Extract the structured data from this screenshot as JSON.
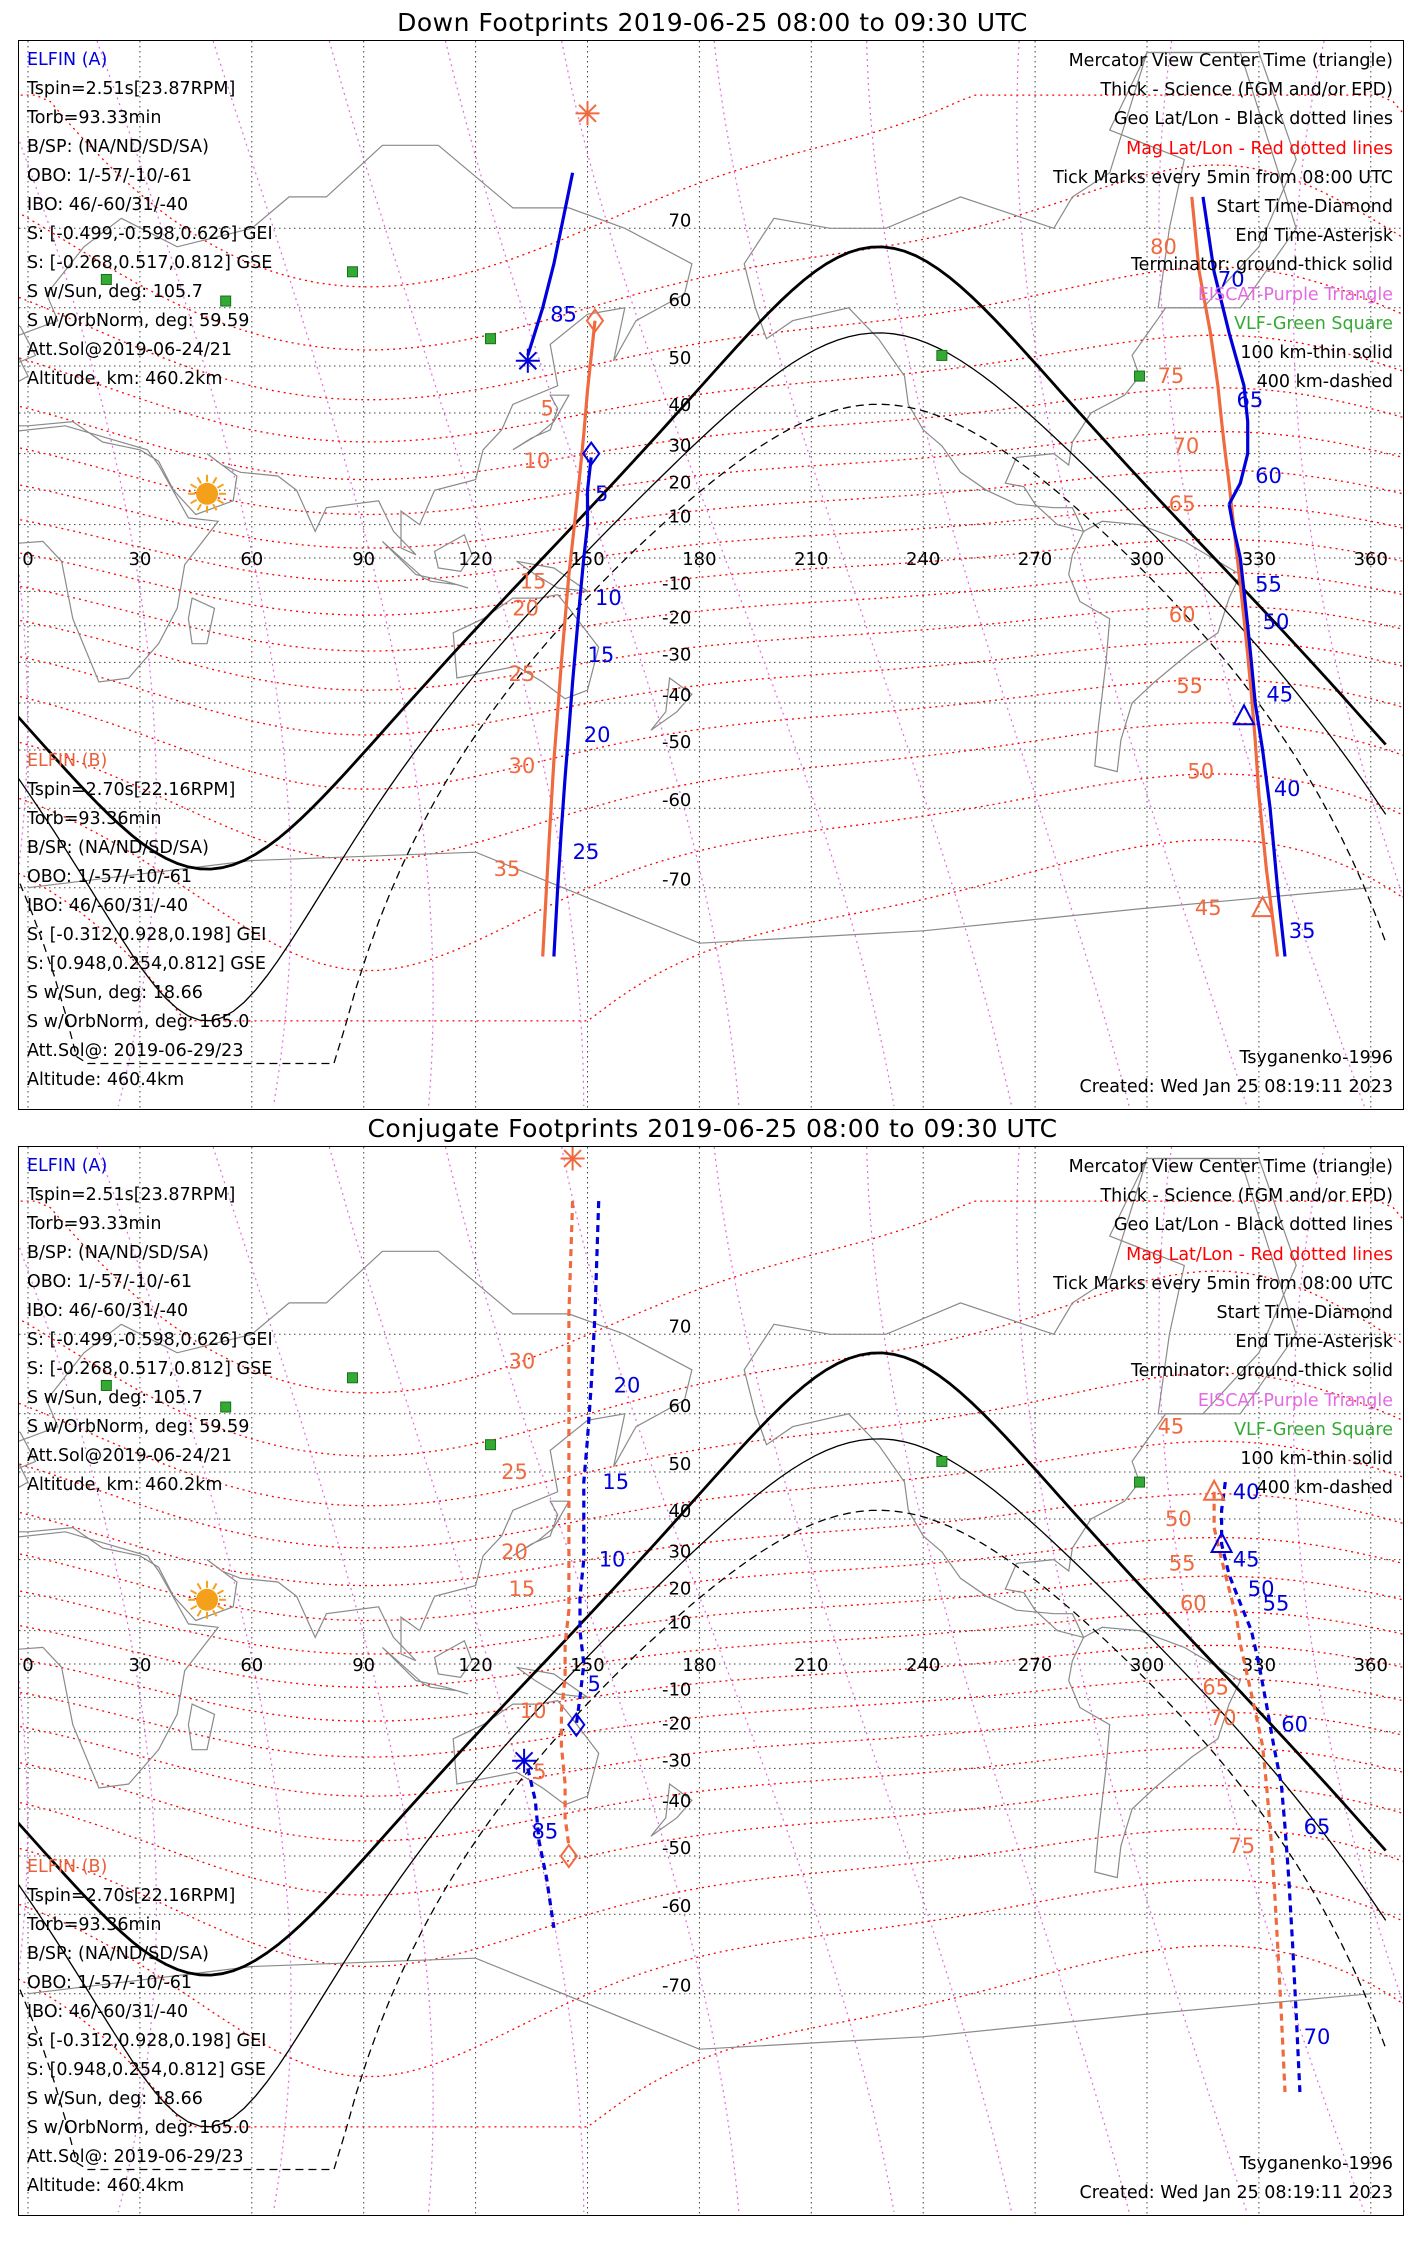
{
  "panels": [
    {
      "title": "Down Footprints 2019-06-25 08:00 to 09:30 UTC",
      "elfin_a": {
        "header": "ELFIN (A)",
        "lines": [
          "Tspin=2.51s[23.87RPM]",
          "Torb=93.33min",
          "B/SP: (NA/ND/SD/SA)",
          "OBO: 1/-57/-10/-61",
          "IBO: 46/-60/31/-40",
          "S: [-0.499,-0.598,0.626] GEI",
          "S: [-0.268,0.517,0.812] GSE",
          "S w/Sun, deg: 105.7",
          "S w/OrbNorm, deg: 59.59",
          "Att.Sol@2019-06-24/21",
          "Altitude, km: 460.2km"
        ]
      },
      "elfin_b": {
        "header": "ELFIN (B)",
        "lines": [
          "Tspin=2.70s[22.16RPM]",
          "Torb=93.36min",
          "B/SP: (NA/ND/SD/SA)",
          "OBO: 1/-57/-10/-61",
          "IBO: 46/-60/31/-40",
          "S: [-0.312,0.928,0.198] GEI",
          "S: [0.948,0.254,0.812] GSE",
          "S w/Sun, deg: 18.66",
          "S w/OrbNorm, deg: 165.0",
          "Att.Sol@: 2019-06-29/23",
          "Altitude: 460.4km"
        ]
      },
      "model": "Tsyganenko-1996",
      "created": "Created: Wed Jan 25 08:19:11 2023"
    },
    {
      "title": "Conjugate Footprints 2019-06-25 08:00 to 09:30 UTC",
      "elfin_a": {
        "header": "ELFIN (A)",
        "lines": [
          "Tspin=2.51s[23.87RPM]",
          "Torb=93.33min",
          "B/SP: (NA/ND/SD/SA)",
          "OBO: 1/-57/-10/-61",
          "IBO: 46/-60/31/-40",
          "S: [-0.499,-0.598,0.626] GEI",
          "S: [-0.268,0.517,0.812] GSE",
          "S w/Sun, deg: 105.7",
          "S w/OrbNorm, deg: 59.59",
          "Att.Sol@2019-06-24/21",
          "Altitude, km: 460.2km"
        ]
      },
      "elfin_b": {
        "header": "ELFIN (B)",
        "lines": [
          "Tspin=2.70s[22.16RPM]",
          "Torb=93.36min",
          "B/SP: (NA/ND/SD/SA)",
          "OBO: 1/-57/-10/-61",
          "IBO: 46/-60/31/-40",
          "S: [-0.312,0.928,0.198] GEI",
          "S: [0.948,0.254,0.812] GSE",
          "S w/Sun, deg: 18.66",
          "S w/OrbNorm, deg: 165.0",
          "Att.Sol@: 2019-06-29/23",
          "Altitude: 460.4km"
        ]
      },
      "model": "Tsyganenko-1996",
      "created": "Created: Wed Jan 25 08:19:11 2023"
    }
  ],
  "legend": {
    "l1": "Mercator View Center Time (triangle)",
    "l2": "Thick - Science (FGM and/or EPD)",
    "l3": "Geo Lat/Lon - Black dotted lines",
    "l4": "Mag Lat/Lon - Red dotted lines",
    "l5": "Tick Marks every 5min from 08:00 UTC",
    "l6": "Start Time-Diamond",
    "l7": "End Time-Asterisk",
    "l8": "Terminator: ground-thick solid",
    "l9": "EISCAT-Purple Triangle",
    "l10": "VLF-Green Square",
    "l11": "100 km-thin solid",
    "l12": "400 km-dashed"
  },
  "axes": {
    "lon_ticks": [
      0,
      30,
      60,
      90,
      120,
      150,
      180,
      210,
      240,
      270,
      300,
      330,
      360
    ],
    "lat_ticks": [
      70,
      60,
      50,
      40,
      30,
      20,
      10,
      -10,
      -20,
      -30,
      -40,
      -50,
      -60,
      -70
    ]
  },
  "colors": {
    "elfin_a": "#0000dd",
    "elfin_b": "#f06a40",
    "mag_grid": "#ff0000",
    "eiscat": "#e26be2",
    "vlf": "#33aa33",
    "sun": "#f5a01a"
  },
  "tracks": {
    "down": {
      "a_segments": [
        {
          "pts": [
            [
              146,
              75
            ],
            [
              141,
              66
            ],
            [
              138,
              60
            ],
            [
              134,
              52
            ]
          ],
          "dash": false
        },
        {
          "pts": [
            [
              151,
              29
            ],
            [
              150,
              20
            ],
            [
              150,
              10
            ],
            [
              149,
              0
            ],
            [
              148,
              -12
            ],
            [
              147,
              -24
            ],
            [
              146,
              -35
            ],
            [
              145,
              -46
            ],
            [
              144,
              -55
            ],
            [
              143,
              -63
            ],
            [
              142,
              -70
            ],
            [
              141,
              -76
            ]
          ],
          "dash": false
        },
        {
          "pts": [
            [
              315,
              73
            ],
            [
              318,
              65
            ],
            [
              322,
              56
            ],
            [
              326,
              46
            ],
            [
              327,
              38
            ],
            [
              327,
              30
            ],
            [
              325,
              22
            ],
            [
              322,
              16
            ]
          ],
          "dash": false
        },
        {
          "pts": [
            [
              322,
              16
            ],
            [
              323,
              10
            ],
            [
              325,
              0
            ],
            [
              326,
              -10
            ],
            [
              327,
              -20
            ],
            [
              328,
              -30
            ],
            [
              329,
              -40
            ],
            [
              331,
              -50
            ],
            [
              333,
              -60
            ],
            [
              335,
              -70
            ],
            [
              337,
              -76
            ]
          ],
          "dash": false
        }
      ],
      "b_segments": [
        {
          "pts": [
            [
              152,
              58
            ],
            [
              150,
              45
            ],
            [
              149,
              35
            ],
            [
              148,
              25
            ],
            [
              147,
              15
            ],
            [
              146,
              5
            ],
            [
              145,
              -5
            ],
            [
              144,
              -18
            ],
            [
              143,
              -30
            ],
            [
              142,
              -42
            ],
            [
              141,
              -52
            ],
            [
              140,
              -62
            ],
            [
              139,
              -70
            ],
            [
              138,
              -76
            ]
          ],
          "dash": false
        },
        {
          "pts": [
            [
              312,
              73
            ],
            [
              314,
              65
            ],
            [
              317,
              56
            ],
            [
              319,
              46
            ],
            [
              320,
              38
            ],
            [
              321,
              30
            ],
            [
              322,
              22
            ],
            [
              323,
              12
            ],
            [
              324,
              2
            ],
            [
              325,
              -8
            ],
            [
              326,
              -18
            ],
            [
              327,
              -28
            ],
            [
              328,
              -38
            ],
            [
              329,
              -48
            ],
            [
              330,
              -58
            ],
            [
              332,
              -68
            ],
            [
              335,
              -76
            ]
          ],
          "dash": false
        }
      ],
      "a_ticks": [
        {
          "t": "85",
          "lon": 140,
          "lat": 59
        },
        {
          "t": "5",
          "lon": 152,
          "lat": 19
        },
        {
          "t": "10",
          "lon": 152,
          "lat": -12
        },
        {
          "t": "15",
          "lon": 150,
          "lat": -28
        },
        {
          "t": "20",
          "lon": 149,
          "lat": -47
        },
        {
          "t": "25",
          "lon": 146,
          "lat": -66
        },
        {
          "t": "70",
          "lon": 319,
          "lat": 64
        },
        {
          "t": "65",
          "lon": 324,
          "lat": 43
        },
        {
          "t": "60",
          "lon": 329,
          "lat": 24
        },
        {
          "t": "55",
          "lon": 329,
          "lat": -8
        },
        {
          "t": "50",
          "lon": 331,
          "lat": -19
        },
        {
          "t": "45",
          "lon": 332,
          "lat": -38
        },
        {
          "t": "40",
          "lon": 334,
          "lat": -57
        },
        {
          "t": "35",
          "lon": 338,
          "lat": -74
        }
      ],
      "b_ticks": [
        {
          "t": "5",
          "lon": 141,
          "lat": 41
        },
        {
          "t": "10",
          "lon": 140,
          "lat": 28
        },
        {
          "t": "15",
          "lon": 139,
          "lat": -7
        },
        {
          "t": "20",
          "lon": 137,
          "lat": -15
        },
        {
          "t": "25",
          "lon": 136,
          "lat": -33
        },
        {
          "t": "30",
          "lon": 136,
          "lat": -53
        },
        {
          "t": "35",
          "lon": 132,
          "lat": -68
        },
        {
          "t": "80",
          "lon": 308,
          "lat": 68
        },
        {
          "t": "75",
          "lon": 310,
          "lat": 48
        },
        {
          "t": "70",
          "lon": 314,
          "lat": 32
        },
        {
          "t": "65",
          "lon": 313,
          "lat": 16
        },
        {
          "t": "60",
          "lon": 313,
          "lat": -17
        },
        {
          "t": "55",
          "lon": 315,
          "lat": -36
        },
        {
          "t": "50",
          "lon": 318,
          "lat": -54
        },
        {
          "t": "45",
          "lon": 320,
          "lat": -72
        }
      ],
      "a_start": [
        151,
        30
      ],
      "a_end": [
        134,
        51
      ],
      "a_tri": [
        326,
        -43
      ],
      "b_start": [
        152,
        58
      ],
      "b_end": [
        150,
        79
      ],
      "b_tri": [
        331,
        -72
      ]
    },
    "conj": {
      "a_segments": [
        {
          "pts": [
            [
              153,
              80
            ],
            [
              152,
              72
            ],
            [
              151,
              64
            ],
            [
              150,
              56
            ],
            [
              149,
              48
            ],
            [
              149,
              40
            ],
            [
              149,
              30
            ],
            [
              148,
              20
            ],
            [
              148,
              10
            ],
            [
              149,
              0
            ],
            [
              148,
              -10
            ],
            [
              147,
              -18
            ]
          ],
          "dash": true
        },
        {
          "pts": [
            [
              134,
              -30
            ],
            [
              136,
              -38
            ],
            [
              137,
              -47
            ],
            [
              139,
              -54
            ],
            [
              141,
              -62
            ]
          ],
          "dash": true
        },
        {
          "pts": [
            [
              321,
              48
            ],
            [
              320,
              42
            ],
            [
              320,
              34
            ],
            [
              322,
              26
            ],
            [
              325,
              18
            ],
            [
              328,
              10
            ],
            [
              330,
              0
            ],
            [
              332,
              -12
            ],
            [
              334,
              -24
            ],
            [
              336,
              -34
            ],
            [
              337,
              -44
            ],
            [
              338,
              -54
            ],
            [
              339,
              -64
            ],
            [
              340,
              -72
            ],
            [
              341,
              -78
            ]
          ],
          "dash": true
        }
      ],
      "b_segments": [
        {
          "pts": [
            [
              146,
              80
            ],
            [
              145,
              72
            ],
            [
              145,
              64
            ],
            [
              145,
              56
            ],
            [
              145,
              48
            ],
            [
              145,
              40
            ],
            [
              145,
              32
            ],
            [
              145,
              24
            ],
            [
              145,
              16
            ],
            [
              144,
              6
            ],
            [
              144,
              -4
            ],
            [
              143,
              -14
            ],
            [
              143,
              -24
            ],
            [
              144,
              -34
            ],
            [
              144,
              -42
            ],
            [
              145,
              -48
            ]
          ],
          "dash": true
        },
        {
          "pts": [
            [
              318,
              46
            ],
            [
              318,
              38
            ],
            [
              320,
              30
            ],
            [
              322,
              22
            ],
            [
              324,
              14
            ],
            [
              325,
              6
            ],
            [
              327,
              -4
            ],
            [
              329,
              -14
            ],
            [
              331,
              -24
            ],
            [
              332,
              -34
            ],
            [
              333,
              -44
            ],
            [
              334,
              -54
            ],
            [
              335,
              -64
            ],
            [
              336,
              -72
            ],
            [
              337,
              -78
            ]
          ],
          "dash": true
        }
      ],
      "a_ticks": [
        {
          "t": "20",
          "lon": 157,
          "lat": 64
        },
        {
          "t": "15",
          "lon": 154,
          "lat": 48
        },
        {
          "t": "10",
          "lon": 153,
          "lat": 30
        },
        {
          "t": "5",
          "lon": 150,
          "lat": -6
        },
        {
          "t": "85",
          "lon": 135,
          "lat": -45
        },
        {
          "t": "40",
          "lon": 323,
          "lat": 46
        },
        {
          "t": "45",
          "lon": 323,
          "lat": 30
        },
        {
          "t": "50",
          "lon": 327,
          "lat": 22
        },
        {
          "t": "55",
          "lon": 331,
          "lat": 18
        },
        {
          "t": "60",
          "lon": 336,
          "lat": -18
        },
        {
          "t": "65",
          "lon": 342,
          "lat": -44
        },
        {
          "t": "70",
          "lon": 342,
          "lat": -74
        }
      ],
      "b_ticks": [
        {
          "t": "30",
          "lon": 136,
          "lat": 67
        },
        {
          "t": "25",
          "lon": 134,
          "lat": 50
        },
        {
          "t": "20",
          "lon": 134,
          "lat": 32
        },
        {
          "t": "15",
          "lon": 136,
          "lat": 22
        },
        {
          "t": "10",
          "lon": 139,
          "lat": -14
        },
        {
          "t": "5",
          "lon": 139,
          "lat": -31
        },
        {
          "t": "45",
          "lon": 310,
          "lat": 58
        },
        {
          "t": "50",
          "lon": 312,
          "lat": 40
        },
        {
          "t": "55",
          "lon": 313,
          "lat": 29
        },
        {
          "t": "60",
          "lon": 316,
          "lat": 18
        },
        {
          "t": "65",
          "lon": 322,
          "lat": -7
        },
        {
          "t": "70",
          "lon": 324,
          "lat": -16
        },
        {
          "t": "75",
          "lon": 329,
          "lat": -48
        }
      ],
      "a_start": [
        147,
        -18
      ],
      "a_end": [
        133,
        -28
      ],
      "a_tri": [
        320,
        34
      ],
      "b_start": [
        145,
        -50
      ],
      "b_end": [
        146,
        82
      ],
      "b_tri": [
        318,
        46
      ]
    }
  },
  "sites": {
    "vlf": [
      [
        87,
        65
      ],
      [
        53,
        61
      ],
      [
        124,
        55
      ],
      [
        245,
        52
      ],
      [
        298,
        48
      ],
      [
        21,
        64
      ]
    ],
    "sun": [
      48,
      19
    ]
  }
}
